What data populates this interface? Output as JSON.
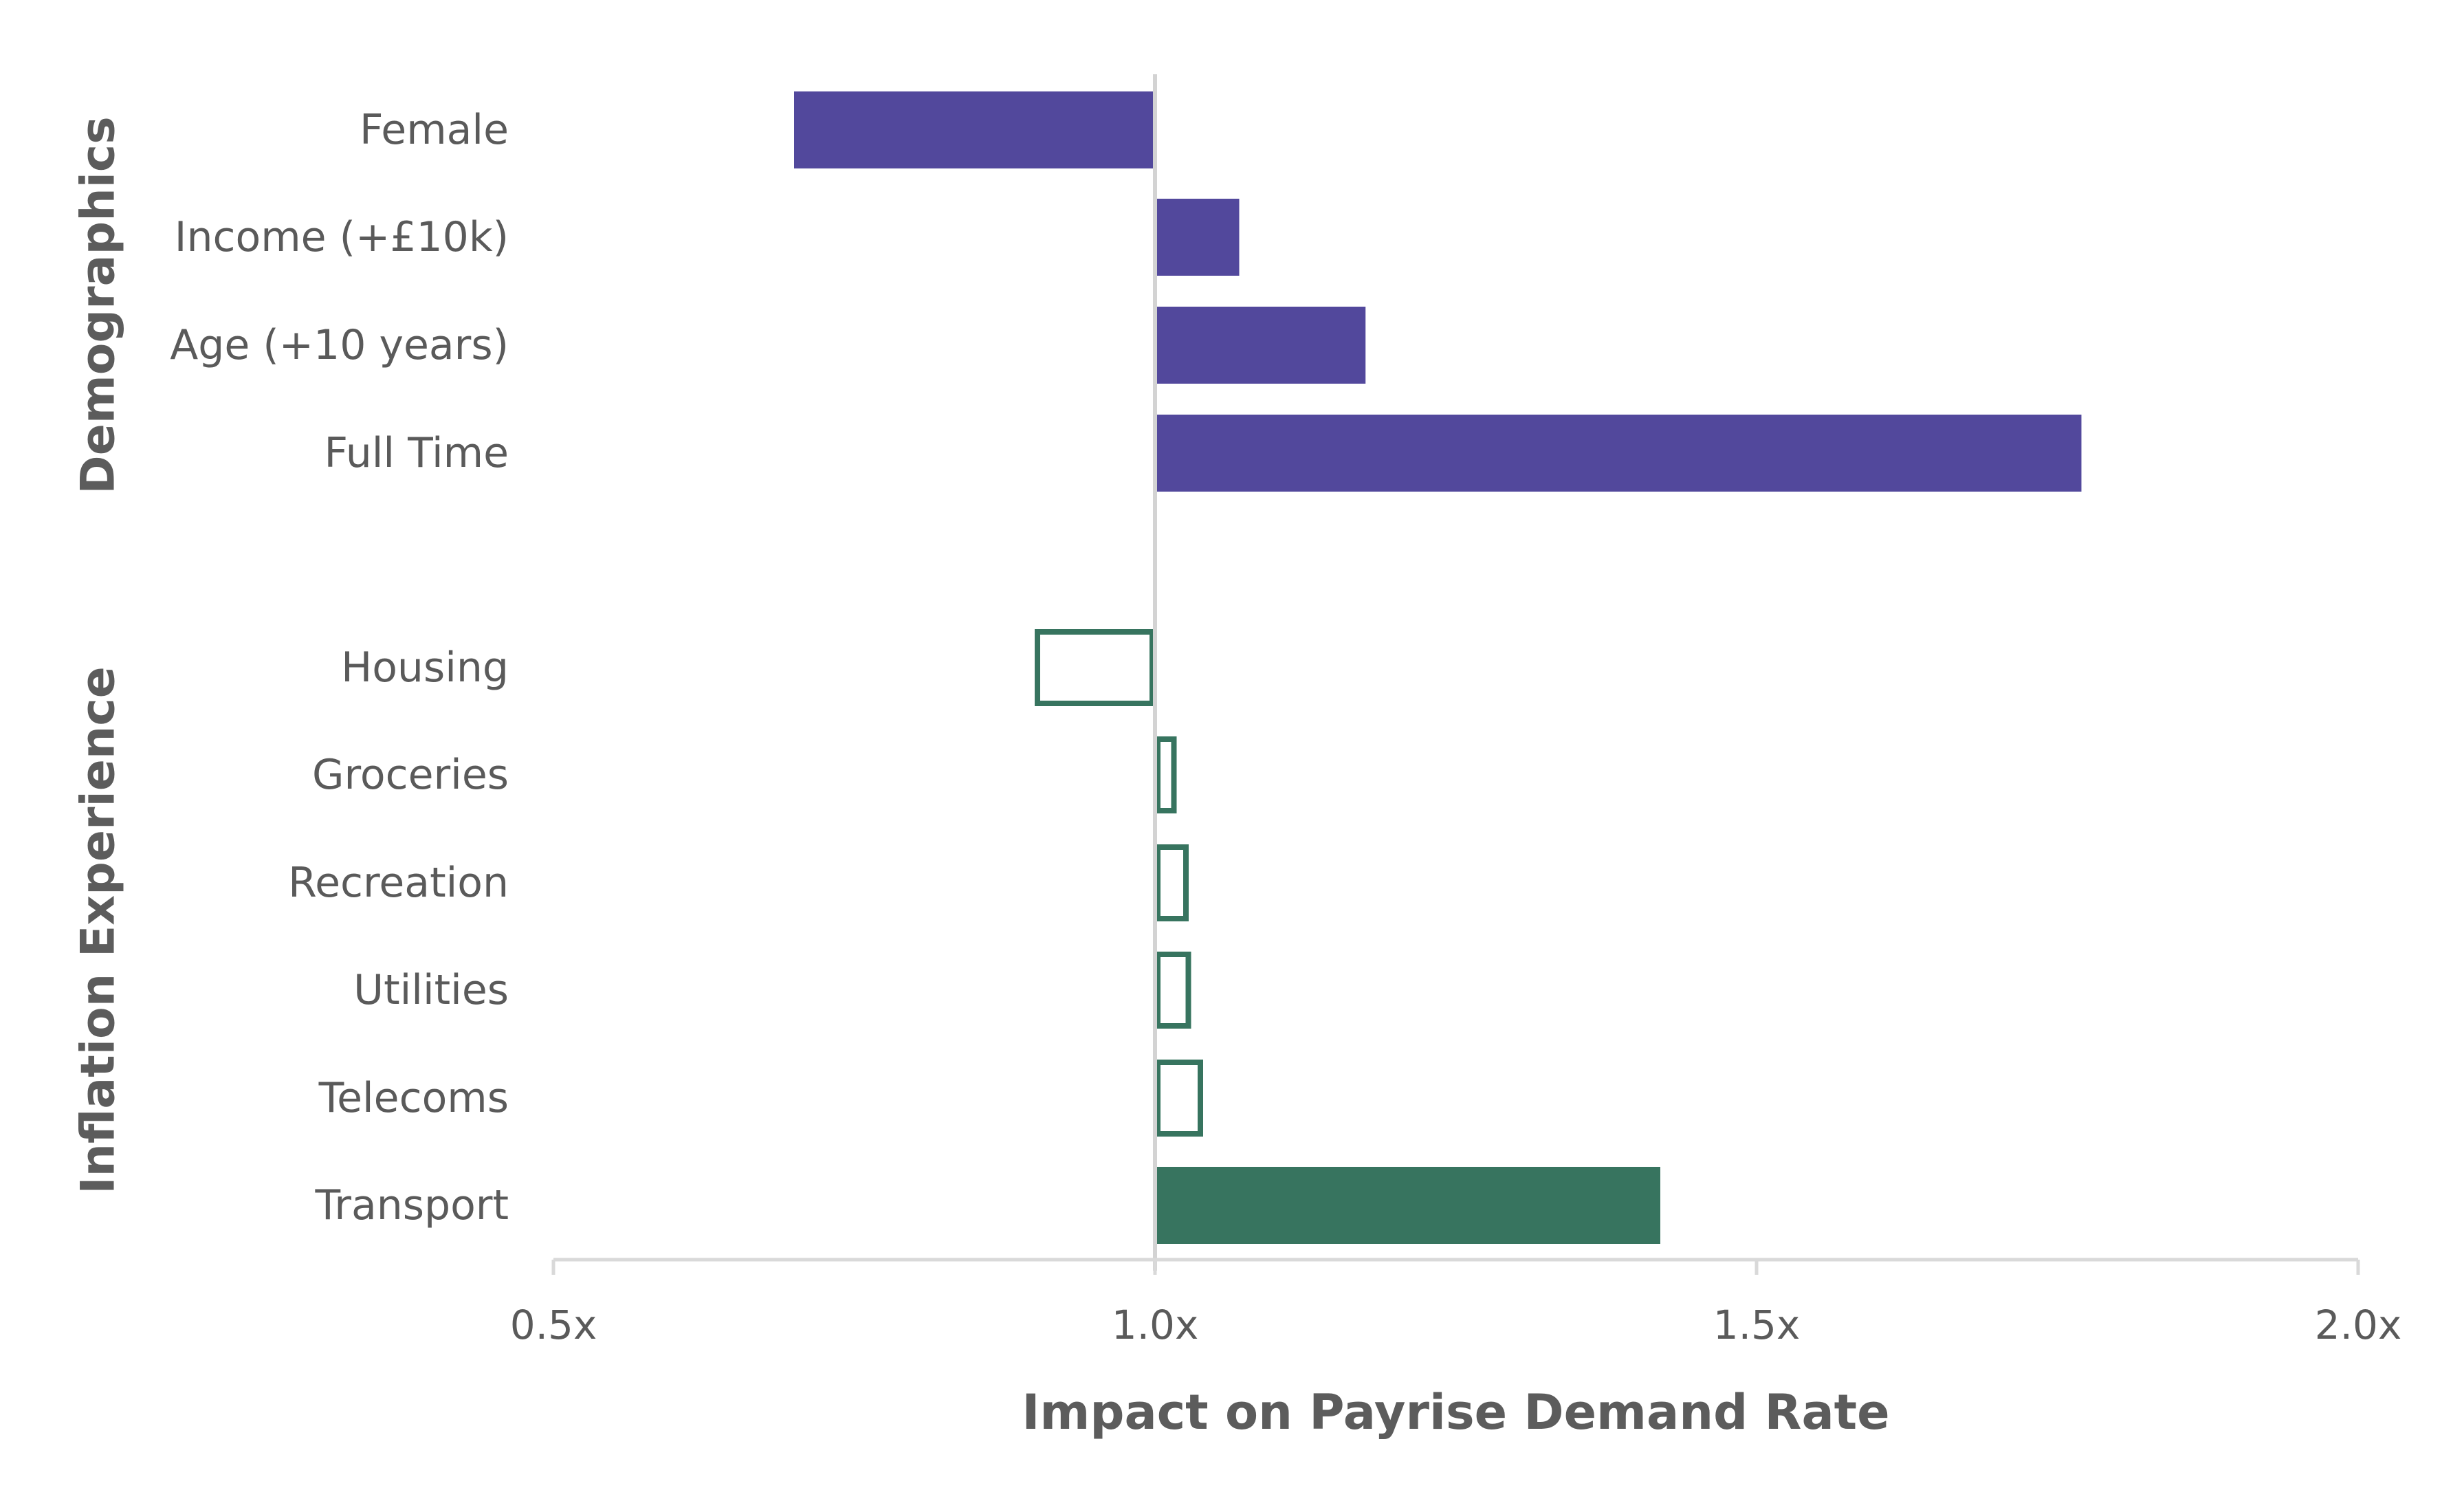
{
  "chart_data": {
    "type": "bar",
    "orientation": "horizontal",
    "baseline": 1.0,
    "xlabel": "Impact on Payrise Demand Rate",
    "xlim": [
      0.5,
      2.0
    ],
    "xticks": [
      0.5,
      1.0,
      1.5,
      2.0
    ],
    "xtick_labels": [
      "0.5x",
      "1.0x",
      "1.5x",
      "2.0x"
    ],
    "grid": false,
    "colors": {
      "demographics": "#52489c",
      "inflation": "#37745f",
      "baseline_line": "#d3d3d3",
      "axis_line": "#d9d9d9"
    },
    "groups": [
      {
        "name": "Demographics",
        "items": [
          {
            "label": "Female",
            "value": 0.7,
            "style": "filled"
          },
          {
            "label": "Income (+£10k)",
            "value": 1.07,
            "style": "filled"
          },
          {
            "label": "Age (+10 years)",
            "value": 1.175,
            "style": "filled"
          },
          {
            "label": "Full Time",
            "value": 1.77,
            "style": "filled"
          }
        ]
      },
      {
        "name": "Inflation Experience",
        "items": [
          {
            "label": "Housing",
            "value": 0.9,
            "style": "outline"
          },
          {
            "label": "Groceries",
            "value": 1.018,
            "style": "outline"
          },
          {
            "label": "Recreation",
            "value": 1.028,
            "style": "outline"
          },
          {
            "label": "Utilities",
            "value": 1.03,
            "style": "outline"
          },
          {
            "label": "Telecoms",
            "value": 1.04,
            "style": "outline"
          },
          {
            "label": "Transport",
            "value": 1.42,
            "style": "filled"
          }
        ]
      }
    ]
  }
}
